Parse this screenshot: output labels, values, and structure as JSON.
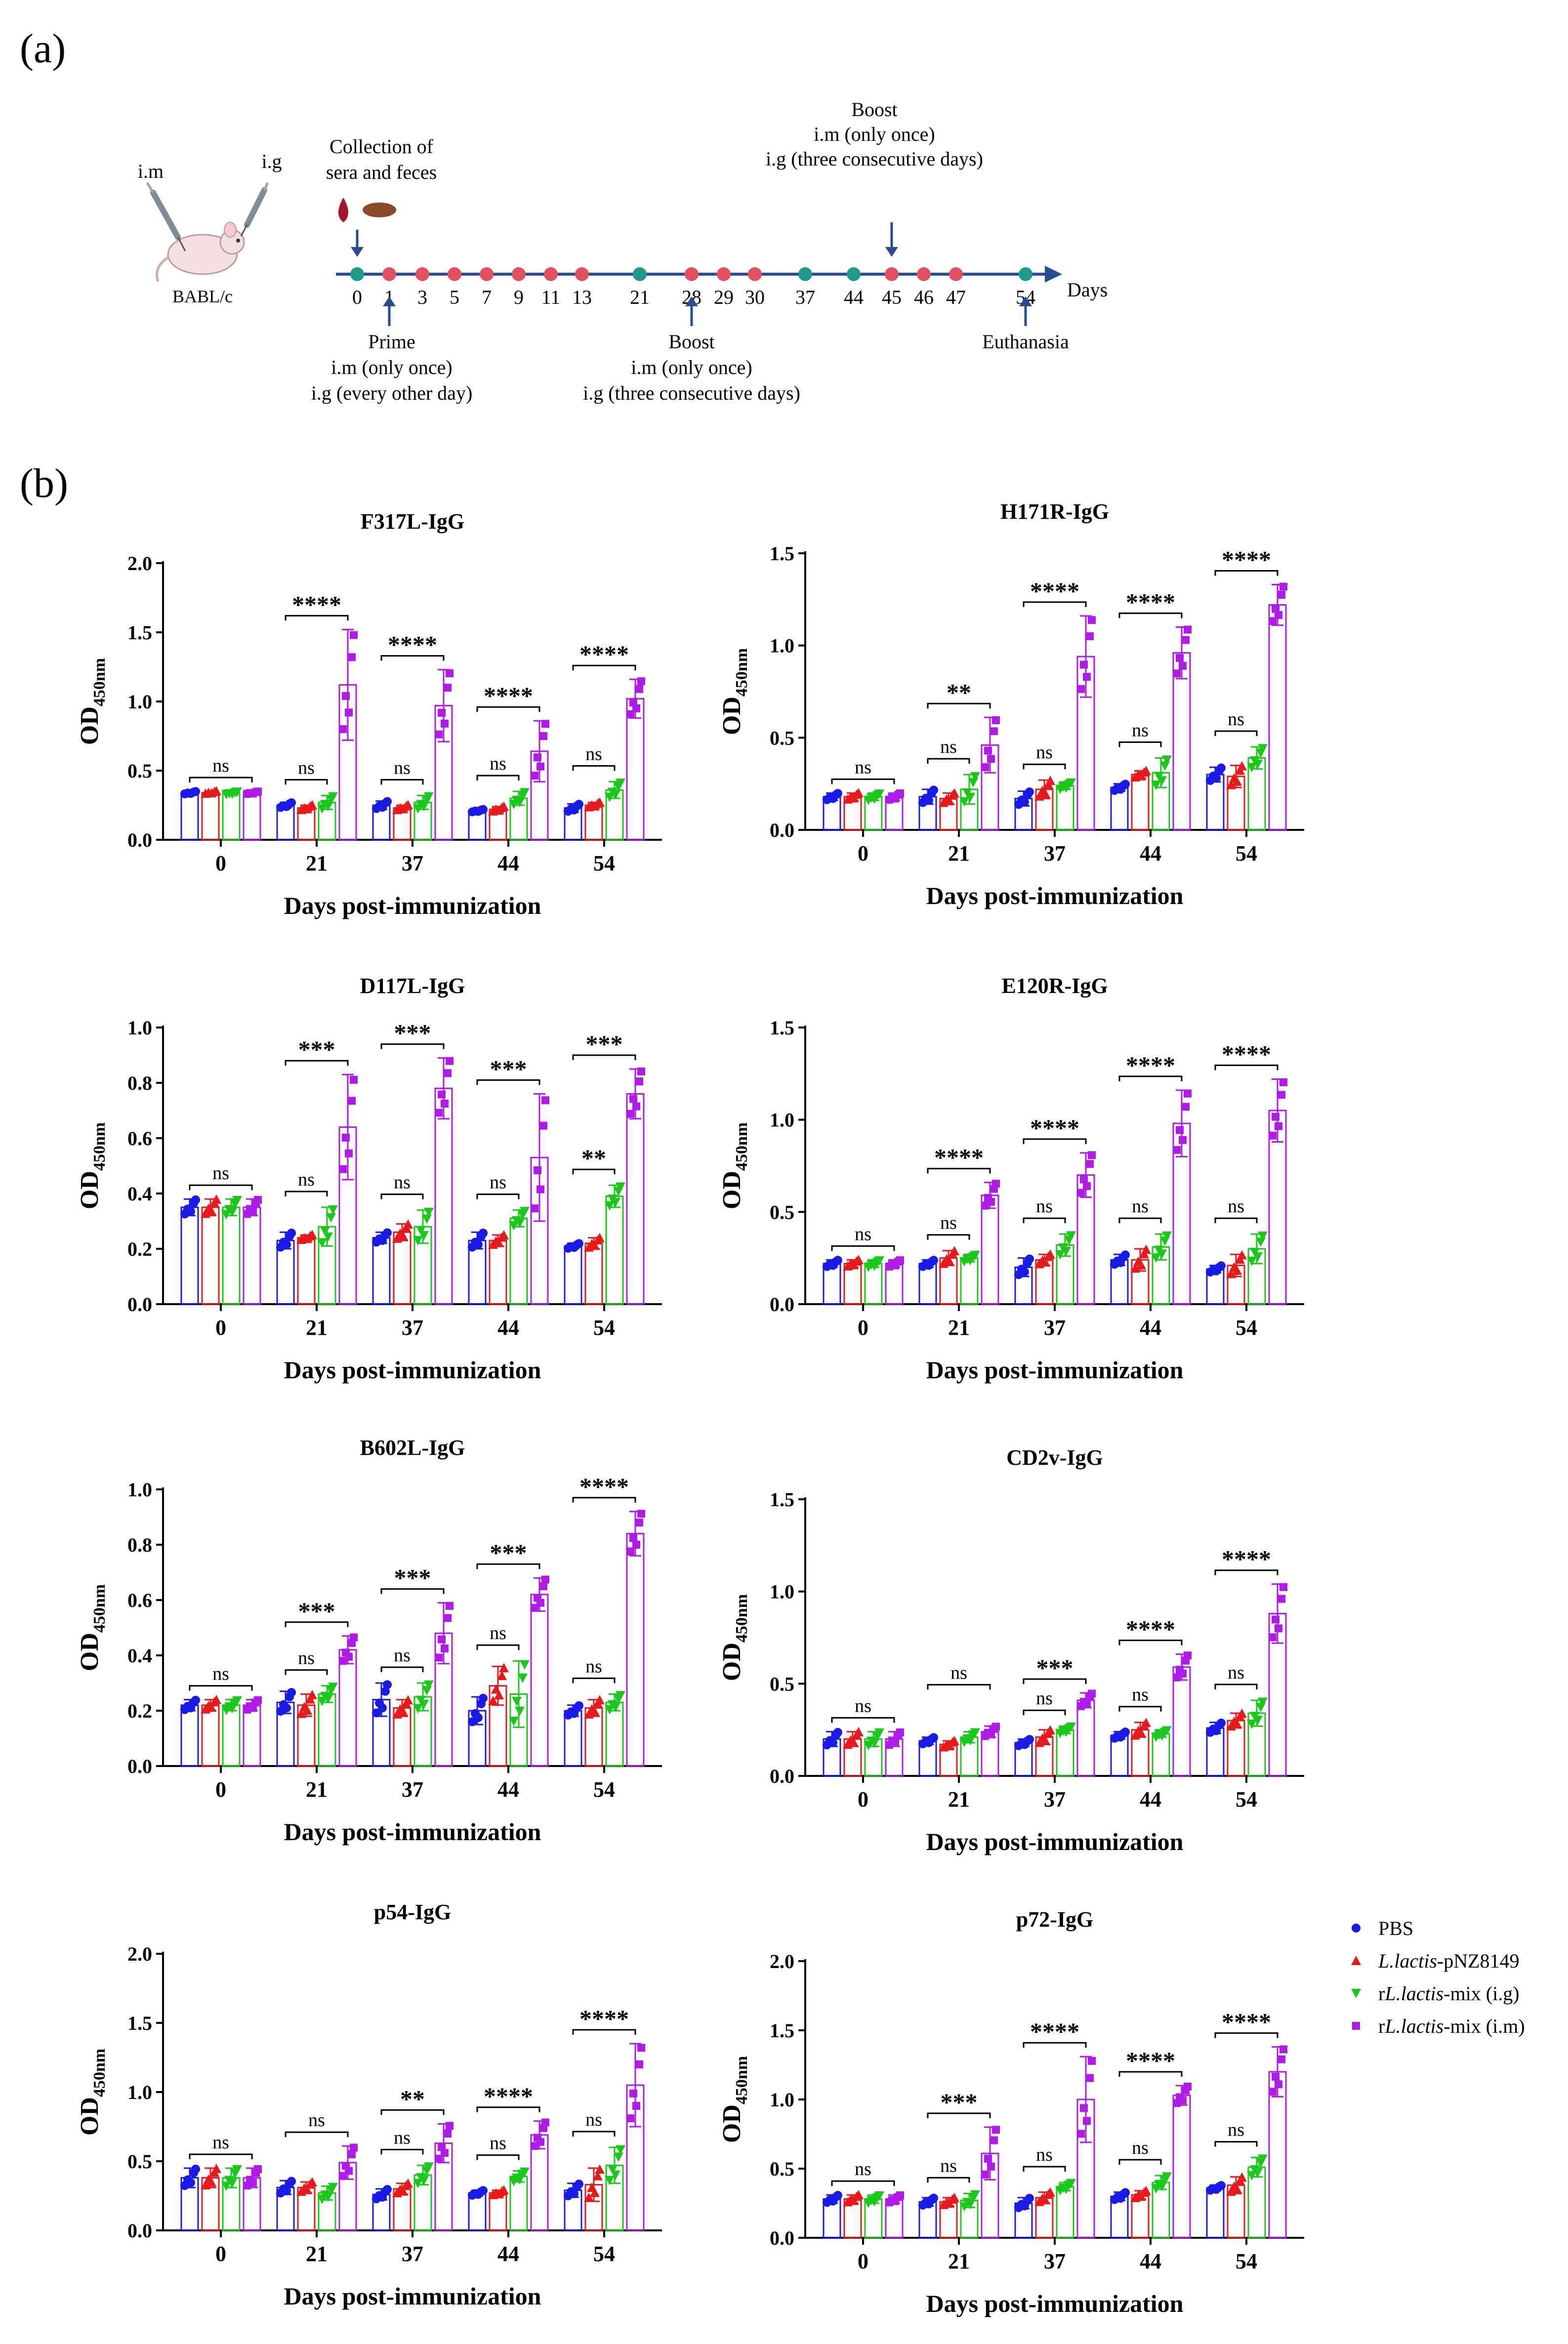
{
  "panels": {
    "a": "(a)",
    "b": "(b)"
  },
  "timeline": {
    "left_labels": {
      "im": "i.m",
      "ig": "i.g",
      "strain": "BABL/c"
    },
    "collection": [
      "Collection of",
      "sera and feces"
    ],
    "boost_top": [
      "Boost",
      "i.m (only once)",
      "i.g (three consecutive days)"
    ],
    "prime": [
      "Prime",
      "i.m (only once)",
      "i.g (every other day)"
    ],
    "boost_bottom": [
      "Boost",
      "i.m (only once)",
      "i.g (three consecutive days)"
    ],
    "euthanasia": "Euthanasia",
    "axis_label": "Days",
    "days": [
      {
        "label": "0",
        "type": "collection"
      },
      {
        "label": "1",
        "type": "immunization"
      },
      {
        "label": "3",
        "type": "immunization"
      },
      {
        "label": "5",
        "type": "immunization"
      },
      {
        "label": "7",
        "type": "immunization"
      },
      {
        "label": "9",
        "type": "immunization"
      },
      {
        "label": "11",
        "type": "immunization"
      },
      {
        "label": "13",
        "type": "immunization"
      },
      {
        "label": "21",
        "type": "collection"
      },
      {
        "label": "28",
        "type": "immunization"
      },
      {
        "label": "29",
        "type": "immunization"
      },
      {
        "label": "30",
        "type": "immunization"
      },
      {
        "label": "37",
        "type": "collection"
      },
      {
        "label": "44",
        "type": "collection"
      },
      {
        "label": "45",
        "type": "immunization"
      },
      {
        "label": "46",
        "type": "immunization"
      },
      {
        "label": "47",
        "type": "immunization"
      },
      {
        "label": "54",
        "type": "collection"
      }
    ],
    "colors": {
      "collection": "#1f9a8a",
      "immunization": "#e05060",
      "arrow": "#2a4d8f"
    }
  },
  "legend": {
    "items": [
      {
        "prefix": "",
        "italic": "",
        "text": "PBS",
        "color": "#1a1ae6",
        "marker": "circle"
      },
      {
        "prefix": "",
        "italic": "L.lactis",
        "text": "-pNZ8149",
        "color": "#e61a1a",
        "marker": "triangle-up"
      },
      {
        "prefix": "r",
        "italic": "L.lactis",
        "text": "-mix (i.g)",
        "color": "#1ac81a",
        "marker": "triangle-down"
      },
      {
        "prefix": "r",
        "italic": "L.lactis",
        "text": "-mix (i.m)",
        "color": "#b01ae6",
        "marker": "square"
      }
    ]
  },
  "chart_data": [
    {
      "type": "bar",
      "title": "F317L-IgG",
      "xlabel": "Days post-immunization",
      "ylabel": "OD450nm",
      "ylim": [
        0,
        2.0
      ],
      "yticks": [
        "0.0",
        "0.5",
        "1.0",
        "1.5",
        "2.0"
      ],
      "categories": [
        "0",
        "21",
        "37",
        "44",
        "54"
      ],
      "series": [
        {
          "name": "PBS",
          "values": [
            0.34,
            0.25,
            0.25,
            0.21,
            0.23
          ],
          "err": [
            0.01,
            0.02,
            0.03,
            0.01,
            0.03
          ]
        },
        {
          "name": "L.lactis-pNZ8149",
          "values": [
            0.34,
            0.23,
            0.23,
            0.22,
            0.25
          ],
          "err": [
            0.01,
            0.02,
            0.02,
            0.02,
            0.02
          ]
        },
        {
          "name": "rL.lactis-mix (i.g)",
          "values": [
            0.34,
            0.27,
            0.27,
            0.3,
            0.36
          ],
          "err": [
            0.01,
            0.05,
            0.05,
            0.05,
            0.06
          ]
        },
        {
          "name": "rL.lactis-mix (i.m)",
          "values": [
            0.34,
            1.12,
            0.97,
            0.64,
            1.02
          ],
          "err": [
            0.01,
            0.4,
            0.26,
            0.22,
            0.14
          ]
        }
      ],
      "sig": [
        "ns",
        "****",
        "****",
        "****",
        "****"
      ],
      "ns_bracket": [
        null,
        "ns",
        "ns",
        "ns",
        "ns"
      ]
    },
    {
      "type": "bar",
      "title": "H171R-IgG",
      "xlabel": "Days post-immunization",
      "ylabel": "OD450nm",
      "ylim": [
        0,
        1.5
      ],
      "yticks": [
        "0.0",
        "0.5",
        "1.0",
        "1.5"
      ],
      "categories": [
        "0",
        "21",
        "37",
        "44",
        "54"
      ],
      "series": [
        {
          "name": "PBS",
          "values": [
            0.18,
            0.18,
            0.17,
            0.23,
            0.3
          ],
          "err": [
            0.02,
            0.04,
            0.04,
            0.02,
            0.04
          ]
        },
        {
          "name": "L.lactis-pNZ8149",
          "values": [
            0.18,
            0.17,
            0.22,
            0.3,
            0.29
          ],
          "err": [
            0.02,
            0.03,
            0.05,
            0.02,
            0.06
          ]
        },
        {
          "name": "rL.lactis-mix (i.g)",
          "values": [
            0.18,
            0.22,
            0.24,
            0.31,
            0.39
          ],
          "err": [
            0.02,
            0.08,
            0.02,
            0.08,
            0.06
          ]
        },
        {
          "name": "rL.lactis-mix (i.m)",
          "values": [
            0.18,
            0.46,
            0.94,
            0.96,
            1.22
          ],
          "err": [
            0.02,
            0.15,
            0.22,
            0.14,
            0.11
          ]
        }
      ],
      "sig": [
        "ns",
        "**",
        "****",
        "****",
        "****"
      ],
      "ns_bracket": [
        null,
        "ns",
        "ns",
        "ns",
        "ns"
      ]
    },
    {
      "type": "bar",
      "title": "D117L-IgG",
      "xlabel": "Days post-immunization",
      "ylabel": "OD450nm",
      "ylim": [
        0,
        1.0
      ],
      "yticks": [
        "0.0",
        "0.2",
        "0.4",
        "0.6",
        "0.8",
        "1.0"
      ],
      "categories": [
        "0",
        "21",
        "37",
        "44",
        "54"
      ],
      "series": [
        {
          "name": "PBS",
          "values": [
            0.35,
            0.23,
            0.24,
            0.23,
            0.21
          ],
          "err": [
            0.03,
            0.03,
            0.02,
            0.03,
            0.01
          ]
        },
        {
          "name": "L.lactis-pNZ8149",
          "values": [
            0.35,
            0.24,
            0.26,
            0.23,
            0.22
          ],
          "err": [
            0.03,
            0.01,
            0.03,
            0.02,
            0.02
          ]
        },
        {
          "name": "rL.lactis-mix (i.g)",
          "values": [
            0.35,
            0.28,
            0.28,
            0.31,
            0.39
          ],
          "err": [
            0.03,
            0.07,
            0.06,
            0.03,
            0.04
          ]
        },
        {
          "name": "rL.lactis-mix (i.m)",
          "values": [
            0.35,
            0.64,
            0.78,
            0.53,
            0.76
          ],
          "err": [
            0.03,
            0.19,
            0.11,
            0.23,
            0.09
          ]
        }
      ],
      "sig": [
        "ns",
        "***",
        "***",
        "***",
        "***"
      ],
      "ns_bracket": [
        null,
        "ns",
        "ns",
        "ns",
        "**"
      ]
    },
    {
      "type": "bar",
      "title": "E120R-IgG",
      "xlabel": "Days post-immunization",
      "ylabel": "OD450nm",
      "ylim": [
        0,
        1.5
      ],
      "yticks": [
        "0.0",
        "0.5",
        "1.0",
        "1.5"
      ],
      "categories": [
        "0",
        "21",
        "37",
        "44",
        "54"
      ],
      "series": [
        {
          "name": "PBS",
          "values": [
            0.22,
            0.22,
            0.2,
            0.24,
            0.19
          ],
          "err": [
            0.02,
            0.02,
            0.05,
            0.03,
            0.02
          ]
        },
        {
          "name": "L.lactis-pNZ8149",
          "values": [
            0.22,
            0.25,
            0.24,
            0.24,
            0.21
          ],
          "err": [
            0.02,
            0.04,
            0.03,
            0.06,
            0.06
          ]
        },
        {
          "name": "rL.lactis-mix (i.g)",
          "values": [
            0.22,
            0.25,
            0.32,
            0.31,
            0.3
          ],
          "err": [
            0.02,
            0.02,
            0.06,
            0.07,
            0.08
          ]
        },
        {
          "name": "rL.lactis-mix (i.m)",
          "values": [
            0.22,
            0.59,
            0.7,
            0.98,
            1.05
          ],
          "err": [
            0.02,
            0.07,
            0.12,
            0.18,
            0.17
          ]
        }
      ],
      "sig": [
        "ns",
        "****",
        "****",
        "****",
        "****"
      ],
      "ns_bracket": [
        null,
        "ns",
        "ns",
        "ns",
        "ns"
      ]
    },
    {
      "type": "bar",
      "title": "B602L-IgG",
      "xlabel": "Days post-immunization",
      "ylabel": "OD450nm",
      "ylim": [
        0,
        1.0
      ],
      "yticks": [
        "0.0",
        "0.2",
        "0.4",
        "0.6",
        "0.8",
        "1.0"
      ],
      "categories": [
        "0",
        "21",
        "37",
        "44",
        "54"
      ],
      "series": [
        {
          "name": "PBS",
          "values": [
            0.22,
            0.23,
            0.24,
            0.2,
            0.2
          ],
          "err": [
            0.02,
            0.04,
            0.06,
            0.05,
            0.02
          ]
        },
        {
          "name": "L.lactis-pNZ8149",
          "values": [
            0.22,
            0.22,
            0.21,
            0.29,
            0.21
          ],
          "err": [
            0.02,
            0.04,
            0.03,
            0.07,
            0.03
          ]
        },
        {
          "name": "rL.lactis-mix (i.g)",
          "values": [
            0.22,
            0.26,
            0.25,
            0.26,
            0.23
          ],
          "err": [
            0.02,
            0.03,
            0.05,
            0.12,
            0.03
          ]
        },
        {
          "name": "rL.lactis-mix (i.m)",
          "values": [
            0.22,
            0.42,
            0.48,
            0.62,
            0.84
          ],
          "err": [
            0.02,
            0.05,
            0.11,
            0.06,
            0.08
          ]
        }
      ],
      "sig": [
        "ns",
        "***",
        "***",
        "***",
        "****"
      ],
      "ns_bracket": [
        null,
        "ns",
        "ns",
        "ns",
        "ns"
      ]
    },
    {
      "type": "bar",
      "title": "CD2v-IgG",
      "xlabel": "Days post-immunization",
      "ylabel": "OD450nm",
      "ylim": [
        0,
        1.5
      ],
      "yticks": [
        "0.0",
        "0.5",
        "1.0",
        "1.5"
      ],
      "categories": [
        "0",
        "21",
        "37",
        "44",
        "54"
      ],
      "series": [
        {
          "name": "PBS",
          "values": [
            0.2,
            0.19,
            0.18,
            0.22,
            0.26
          ],
          "err": [
            0.04,
            0.02,
            0.02,
            0.02,
            0.03
          ]
        },
        {
          "name": "L.lactis-pNZ8149",
          "values": [
            0.2,
            0.17,
            0.21,
            0.25,
            0.3
          ],
          "err": [
            0.04,
            0.02,
            0.04,
            0.04,
            0.04
          ]
        },
        {
          "name": "rL.lactis-mix (i.g)",
          "values": [
            0.2,
            0.21,
            0.25,
            0.23,
            0.34
          ],
          "err": [
            0.04,
            0.03,
            0.02,
            0.02,
            0.07
          ]
        },
        {
          "name": "rL.lactis-mix (i.m)",
          "values": [
            0.2,
            0.24,
            0.41,
            0.59,
            0.88
          ],
          "err": [
            0.04,
            0.03,
            0.04,
            0.07,
            0.16
          ]
        }
      ],
      "sig": [
        "ns",
        "ns",
        "***",
        "****",
        "****"
      ],
      "ns_bracket": [
        null,
        null,
        "ns",
        "ns",
        "ns"
      ]
    },
    {
      "type": "bar",
      "title": "p54-IgG",
      "xlabel": "Days post-immunization",
      "ylabel": "OD450nm",
      "ylim": [
        0,
        2.0
      ],
      "yticks": [
        "0.0",
        "0.5",
        "1.0",
        "1.5",
        "2.0"
      ],
      "categories": [
        "0",
        "21",
        "37",
        "44",
        "54"
      ],
      "series": [
        {
          "name": "PBS",
          "values": [
            0.38,
            0.31,
            0.26,
            0.27,
            0.29
          ],
          "err": [
            0.07,
            0.05,
            0.04,
            0.02,
            0.05
          ]
        },
        {
          "name": "L.lactis-pNZ8149",
          "values": [
            0.38,
            0.31,
            0.3,
            0.27,
            0.33
          ],
          "err": [
            0.07,
            0.04,
            0.04,
            0.02,
            0.12
          ]
        },
        {
          "name": "rL.lactis-mix (i.g)",
          "values": [
            0.38,
            0.27,
            0.4,
            0.39,
            0.47
          ],
          "err": [
            0.07,
            0.05,
            0.07,
            0.04,
            0.13
          ]
        },
        {
          "name": "rL.lactis-mix (i.m)",
          "values": [
            0.38,
            0.49,
            0.63,
            0.69,
            1.05
          ],
          "err": [
            0.07,
            0.12,
            0.14,
            0.1,
            0.3
          ]
        }
      ],
      "sig": [
        "ns",
        "ns",
        "**",
        "****",
        "****"
      ],
      "ns_bracket": [
        null,
        null,
        "ns",
        "ns",
        "ns"
      ]
    },
    {
      "type": "bar",
      "title": "p72-IgG",
      "xlabel": "Days post-immunization",
      "ylabel": "OD450nm",
      "ylim": [
        0,
        2.0
      ],
      "yticks": [
        "0.0",
        "0.5",
        "1.0",
        "1.5",
        "2.0"
      ],
      "categories": [
        "0",
        "21",
        "37",
        "44",
        "54"
      ],
      "series": [
        {
          "name": "PBS",
          "values": [
            0.28,
            0.26,
            0.25,
            0.3,
            0.36
          ],
          "err": [
            0.03,
            0.03,
            0.04,
            0.03,
            0.02
          ]
        },
        {
          "name": "L.lactis-pNZ8149",
          "values": [
            0.28,
            0.26,
            0.29,
            0.31,
            0.38
          ],
          "err": [
            0.03,
            0.03,
            0.04,
            0.03,
            0.06
          ]
        },
        {
          "name": "rL.lactis-mix (i.g)",
          "values": [
            0.28,
            0.27,
            0.37,
            0.4,
            0.51
          ],
          "err": [
            0.03,
            0.05,
            0.03,
            0.05,
            0.07
          ]
        },
        {
          "name": "rL.lactis-mix (i.m)",
          "values": [
            0.28,
            0.61,
            1.0,
            1.03,
            1.2
          ],
          "err": [
            0.03,
            0.19,
            0.31,
            0.07,
            0.18
          ]
        }
      ],
      "sig": [
        "ns",
        "***",
        "****",
        "****",
        "****"
      ],
      "ns_bracket": [
        null,
        "ns",
        "ns",
        "ns",
        "ns"
      ]
    }
  ]
}
